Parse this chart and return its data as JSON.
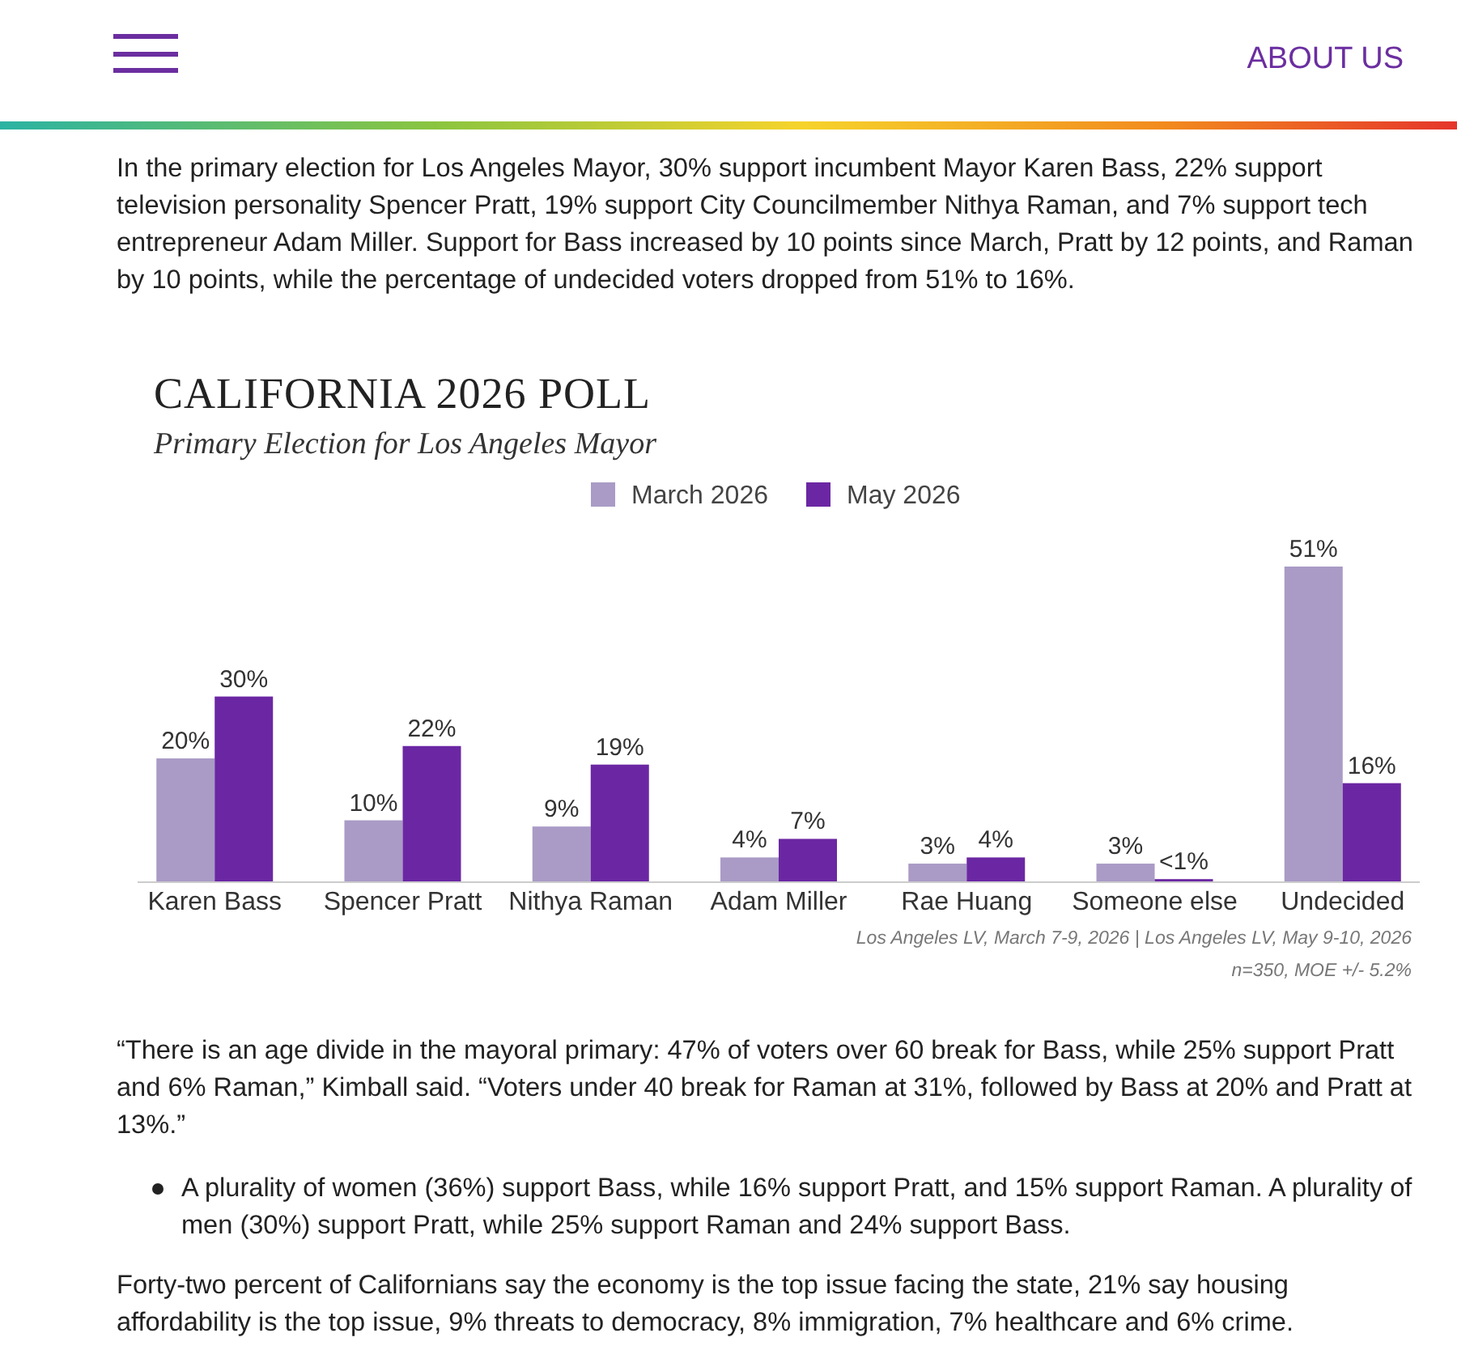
{
  "chart_data": {
    "type": "bar",
    "title": "CALIFORNIA 2026 POLL",
    "subtitle": "Primary Election for Los Angeles Mayor",
    "categories": [
      "Karen Bass",
      "Spencer Pratt",
      "Nithya Raman",
      "Adam Miller",
      "Rae Huang",
      "Someone else",
      "Undecided"
    ],
    "series": [
      {
        "name": "March 2026",
        "color": "#a99bc6",
        "values": [
          20,
          10,
          9,
          4,
          3,
          3,
          51
        ],
        "value_labels": [
          "20%",
          "10%",
          "9%",
          "4%",
          "3%",
          "3%",
          "51%"
        ]
      },
      {
        "name": "May 2026",
        "color": "#6b27a3",
        "values": [
          30,
          22,
          19,
          7,
          4,
          0.5,
          16
        ],
        "value_labels": [
          "30%",
          "22%",
          "19%",
          "7%",
          "4%",
          "<1%",
          "16%"
        ]
      }
    ],
    "legend": "top",
    "annotations": [
      "ABOUT US",
      "In the primary election for Los Angeles Mayor, 30% support incumbent Mayor Karen Bass, 22% support television personality Spencer Pratt, 19% support City Councilmember Nithya Raman, and 7% support tech entrepreneur Adam Miller. Support for Bass increased by 10 points since March, Pratt by 12 points, and Raman by 10 points, while the percentage of undecided voters dropped from 51% to 16%.",
      "Los Angeles LV, March 7-9, 2026 | Los Angeles LV, May 9-10, 2026",
      "n=350, MOE +/- 5.2%",
      "“There is an age divide in the mayoral primary: 47% of voters over 60 break for Bass, while 25% support Pratt and 6% Raman,” Kimball said. “Voters under 40 break for Raman at 31%, followed by Bass at 20% and Pratt at 13%.”",
      "A plurality of women (36%) support Bass, while 16% support Pratt, and 15% support Raman. A plurality of men (30%) support Pratt, while 25% support Raman and 24% support Bass.",
      "Forty-two percent of Californians say the economy is the top issue facing the state, 21% say housing affordability is the top issue, 9% threats to democracy, 8% immigration, 7% healthcare and 6% crime."
    ]
  }
}
